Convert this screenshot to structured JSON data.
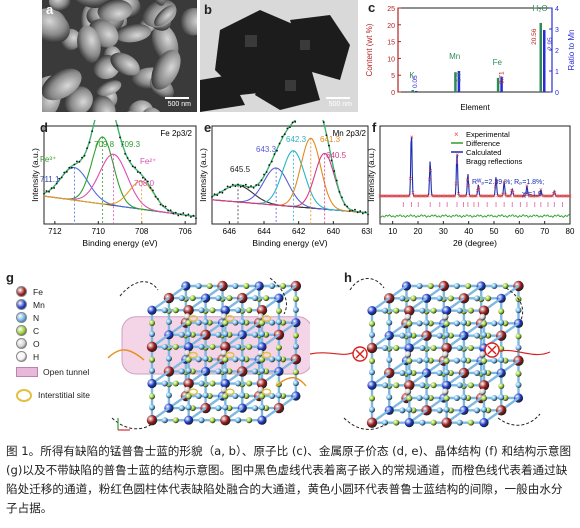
{
  "panels": {
    "a": {
      "label": "a",
      "scale_bar": "500 nm"
    },
    "b": {
      "label": "b",
      "scale_bar": "500 nm"
    },
    "c": {
      "label": "c"
    },
    "d": {
      "label": "d"
    },
    "e": {
      "label": "e"
    },
    "f": {
      "label": "f"
    },
    "g": {
      "label": "g"
    },
    "h": {
      "label": "h"
    }
  },
  "chart_data": [
    {
      "panel": "c",
      "type": "bar",
      "ylabel_left": "Content (wt %)",
      "ylabel_right": "Ratio to Mn",
      "xlabel": "Element",
      "ylim_left": [
        0,
        25
      ],
      "ylim_right": [
        0,
        4
      ],
      "yticks_left": [
        "0",
        "5",
        "10",
        "15",
        "20",
        "25"
      ],
      "yticks_right": [
        "0",
        "1",
        "2",
        "3",
        "4"
      ],
      "categories": [
        "K",
        "Mn",
        "Fe",
        "H2O"
      ],
      "category_labels": [
        "K",
        "Mn",
        "Fe",
        "H₂O"
      ],
      "series": [
        {
          "values": [
            0.6,
            5.9,
            4.2,
            20.56
          ],
          "color": "#2e8b57"
        },
        {
          "values": [
            0.05,
            1.0,
            0.71,
            2.95
          ],
          "color": "#2b2bd6"
        }
      ],
      "value_labels": [
        "0.05",
        "1.0",
        "0.71",
        "20.56",
        "2.95"
      ]
    },
    {
      "panel": "d",
      "type": "line",
      "title": "Fe 2p3/2",
      "xlabel": "Binding energy (eV)",
      "ylabel": "Intensity (a.u.)",
      "xlim": [
        705.5,
        712.5
      ],
      "xticks": [
        "712",
        "710",
        "708",
        "706"
      ],
      "annotations": [
        "709.8",
        "709.3",
        "711.1",
        "708.0",
        "Fe³⁺",
        "Fe²⁺"
      ],
      "series": [
        {
          "name": "Fe3+ a",
          "color": "#4a6fe0",
          "center": 711.1,
          "height": 0.35,
          "width": 0.9
        },
        {
          "name": "Fe3+ b",
          "color": "#2e9e2e",
          "center": 709.8,
          "height": 0.72,
          "width": 0.7
        },
        {
          "name": "Fe2+ a",
          "color": "#d94fb5",
          "center": 709.3,
          "height": 0.55,
          "width": 0.9
        },
        {
          "name": "Fe2+ b",
          "color": "#e0a020",
          "center": 708.0,
          "height": 0.3,
          "width": 0.8
        }
      ]
    },
    {
      "panel": "e",
      "type": "line",
      "title": "Mn 2p3/2",
      "xlabel": "Binding energy (eV)",
      "ylabel": "Intensity (a.u.)",
      "xlim": [
        638,
        647
      ],
      "xticks": [
        "646",
        "644",
        "642",
        "640",
        "638"
      ],
      "annotations": [
        "645.5",
        "643.3",
        "642.3",
        "641.3",
        "640.5"
      ],
      "series": [
        {
          "name": "645.5",
          "color": "#333333",
          "center": 645.5,
          "height": 0.18,
          "width": 1.2
        },
        {
          "name": "643.3",
          "color": "#5a5ad6",
          "center": 643.3,
          "height": 0.4,
          "width": 1.0
        },
        {
          "name": "642.3",
          "color": "#2ab5c8",
          "center": 642.3,
          "height": 0.6,
          "width": 0.9
        },
        {
          "name": "641.3",
          "color": "#e08a20",
          "center": 641.3,
          "height": 0.75,
          "width": 0.8
        },
        {
          "name": "640.5",
          "color": "#d63a8a",
          "center": 640.5,
          "height": 0.6,
          "width": 0.8
        }
      ]
    },
    {
      "panel": "f",
      "type": "line",
      "xlabel": "2θ (degree)",
      "ylabel": "Intensity (a.u.)",
      "xlim": [
        5,
        80
      ],
      "xticks": [
        "10",
        "20",
        "30",
        "40",
        "50",
        "60",
        "70",
        "80"
      ],
      "legend": [
        "Experimental",
        "Difference",
        "Calculated",
        "Bragg reflections"
      ],
      "annotations": [
        "Rᵂₚ=2.39 %; Rₚ=1.8%;",
        "χ²=1.9"
      ],
      "peaks": [
        {
          "x": 17.4,
          "y": 1.0
        },
        {
          "x": 24.8,
          "y": 0.55
        },
        {
          "x": 35.4,
          "y": 0.7
        },
        {
          "x": 39.7,
          "y": 0.35
        },
        {
          "x": 43.8,
          "y": 0.18
        },
        {
          "x": 50.8,
          "y": 0.3
        },
        {
          "x": 54.0,
          "y": 0.22
        },
        {
          "x": 57.2,
          "y": 0.12
        },
        {
          "x": 63.0,
          "y": 0.16
        },
        {
          "x": 68.5,
          "y": 0.1
        },
        {
          "x": 73.8,
          "y": 0.08
        }
      ],
      "bragg": [
        14.2,
        17.4,
        20.1,
        24.8,
        28.6,
        31.5,
        35.4,
        38.0,
        39.7,
        42.1,
        43.8,
        47.3,
        50.8,
        54.0,
        57.2,
        60.4,
        63.0,
        66.1,
        68.5,
        71.3,
        73.8,
        77.0
      ]
    }
  ],
  "legend_g": {
    "items": [
      {
        "label": "Fe",
        "color": "#9a1c1c"
      },
      {
        "label": "Mn",
        "color": "#1e3cc8"
      },
      {
        "label": "N",
        "color": "#6ab4e8"
      },
      {
        "label": "C",
        "color": "#9acd32"
      },
      {
        "label": "O",
        "color": "#d0d0d0"
      },
      {
        "label": "H",
        "color": "#f2f2f2"
      }
    ],
    "open_tunnel": "Open tunnel",
    "interstitial": "Interstitial site"
  },
  "caption": {
    "text": "图 1。所得有缺陷的锰普鲁士蓝的形貌（a, b）、原子比 (c)、金属原子价态 (d, e)、晶体结构 (f) 和结构示意图(g)以及不带缺陷的普鲁士蓝的结构示意图。图中黑色虚线代表着离子嵌入的常规通道，而橙色线代表着通过缺陷处迁移的通道，粉红色圆柱体代表缺陷处融合的大通道，黄色小圆环代表普鲁士蓝结构的间隙，一般由水分子占据。"
  }
}
